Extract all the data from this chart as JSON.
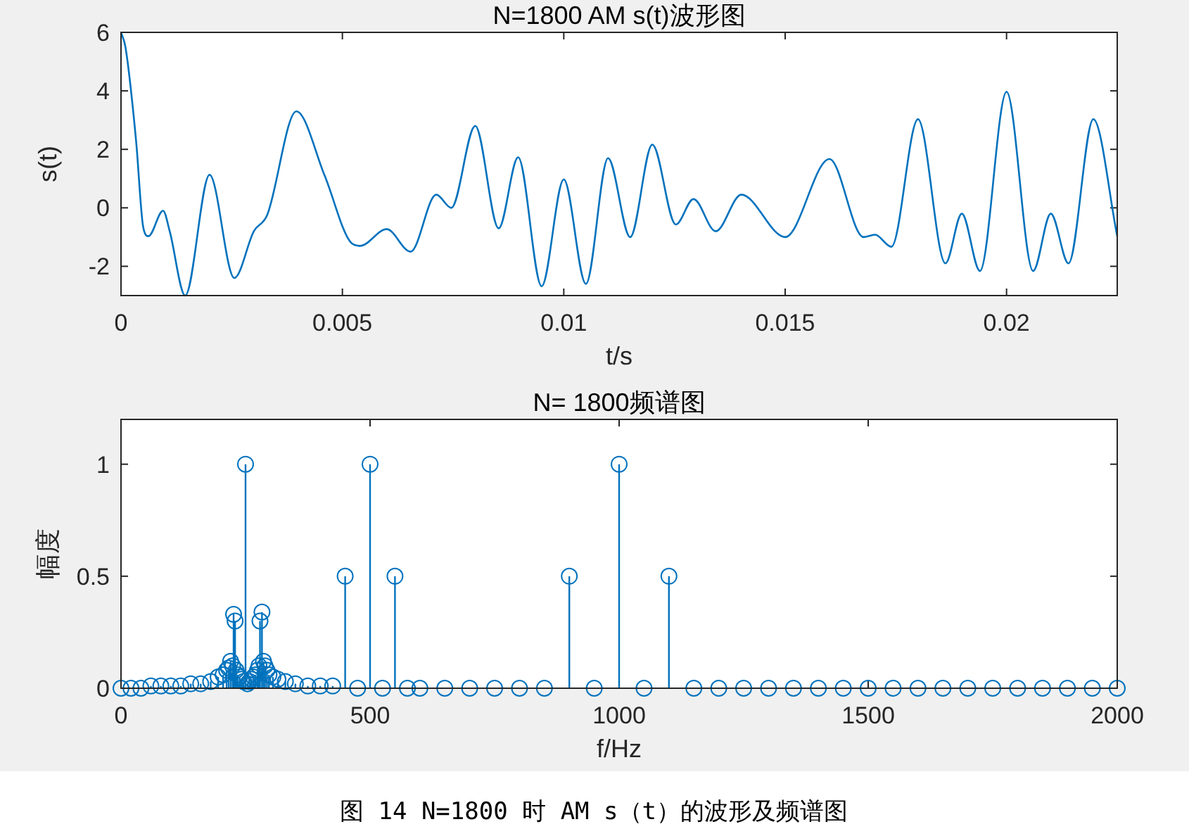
{
  "chart_data": [
    {
      "type": "line",
      "title": "N=1800 AM s(t)波形图",
      "xlabel": "t/s",
      "ylabel": "s(t)",
      "xlim": [
        0,
        0.0225
      ],
      "xticks": [
        0,
        0.005,
        0.01,
        0.015,
        0.02
      ],
      "ylim": [
        -3,
        6
      ],
      "yticks": [
        -2,
        0,
        2,
        4,
        6
      ],
      "line_style": "solid",
      "series": [
        {
          "color": "#0072bd",
          "x": [
            0,
            0.0001,
            0.00034,
            0.0005,
            0.00062,
            0.00095,
            0.0011,
            0.00145,
            0.002,
            0.00256,
            0.003,
            0.0033,
            0.00396,
            0.0046,
            0.0052,
            0.0054,
            0.006,
            0.00654,
            0.00712,
            0.00746,
            0.008,
            0.00853,
            0.00897,
            0.0095,
            0.01,
            0.0105,
            0.011,
            0.0115,
            0.012,
            0.01253,
            0.01293,
            0.01343,
            0.01401,
            0.015,
            0.016,
            0.01677,
            0.01703,
            0.0174,
            0.018,
            0.01862,
            0.01899,
            0.0194,
            0.02,
            0.0206,
            0.021,
            0.0214,
            0.02196,
            0.0225
          ],
          "values": [
            6,
            5.5,
            2.3,
            -0.65,
            -0.97,
            -0.1,
            -0.8,
            -3,
            1.13,
            -2.4,
            -0.8,
            -0.25,
            3.3,
            1.1,
            -1.2,
            -1.3,
            -0.73,
            -1.5,
            0.45,
            0,
            2.8,
            -0.7,
            1.73,
            -2.68,
            0.97,
            -2.6,
            1.7,
            -1,
            2.16,
            -0.57,
            0.3,
            -0.8,
            0.45,
            -1,
            1.67,
            -1,
            -0.92,
            -1.33,
            3.03,
            -1.9,
            -0.2,
            -2.16,
            3.97,
            -2.16,
            -0.2,
            -1.9,
            3.03,
            -0.97
          ]
        }
      ]
    },
    {
      "type": "lollipop",
      "title": "N= 1800频谱图",
      "xlabel": "f/Hz",
      "ylabel": "幅度",
      "xlim": [
        0,
        2000
      ],
      "xticks": [
        0,
        500,
        1000,
        1500,
        2000
      ],
      "ylim": [
        0,
        1.2
      ],
      "yticks": [
        0,
        0.5,
        1
      ],
      "marker": "circle",
      "annotations": [
        "图 14 N=1800 时 AM s（t）的波形及频谱图"
      ],
      "series": [
        {
          "color": "#0072bd",
          "x": [
            0,
            20,
            40,
            60,
            80,
            100,
            120,
            140,
            160,
            180,
            195,
            205,
            212,
            216,
            220,
            224,
            226,
            229,
            231,
            234,
            238,
            242,
            246,
            250,
            254,
            258,
            262,
            266,
            270,
            274,
            277,
            279,
            283,
            286,
            289,
            293,
            297,
            305,
            315,
            330,
            350,
            375,
            400,
            425,
            450,
            475,
            500,
            525,
            550,
            575,
            600,
            650,
            700,
            750,
            800,
            850,
            900,
            950,
            1000,
            1050,
            1100,
            1150,
            1200,
            1250,
            1300,
            1350,
            1400,
            1450,
            1500,
            1550,
            1600,
            1650,
            1700,
            1750,
            1800,
            1850,
            1900,
            1950,
            2000
          ],
          "values": [
            0,
            0,
            0,
            0.01,
            0.01,
            0.01,
            0.01,
            0.02,
            0.02,
            0.03,
            0.05,
            0.06,
            0.08,
            0.09,
            0.12,
            0.1,
            0.33,
            0.3,
            0.08,
            0.06,
            0.05,
            0.04,
            0.03,
            1,
            0.02,
            0.03,
            0.04,
            0.05,
            0.06,
            0.08,
            0.1,
            0.3,
            0.34,
            0.12,
            0.1,
            0.08,
            0.06,
            0.05,
            0.04,
            0.03,
            0.02,
            0.01,
            0.01,
            0.01,
            0.5,
            0,
            1,
            0,
            0.5,
            0,
            0,
            0,
            0,
            0,
            0,
            0,
            0.5,
            0,
            1,
            0,
            0.5,
            0,
            0,
            0,
            0,
            0,
            0,
            0,
            0,
            0,
            0,
            0,
            0,
            0,
            0,
            0,
            0,
            0,
            0
          ]
        }
      ]
    }
  ]
}
